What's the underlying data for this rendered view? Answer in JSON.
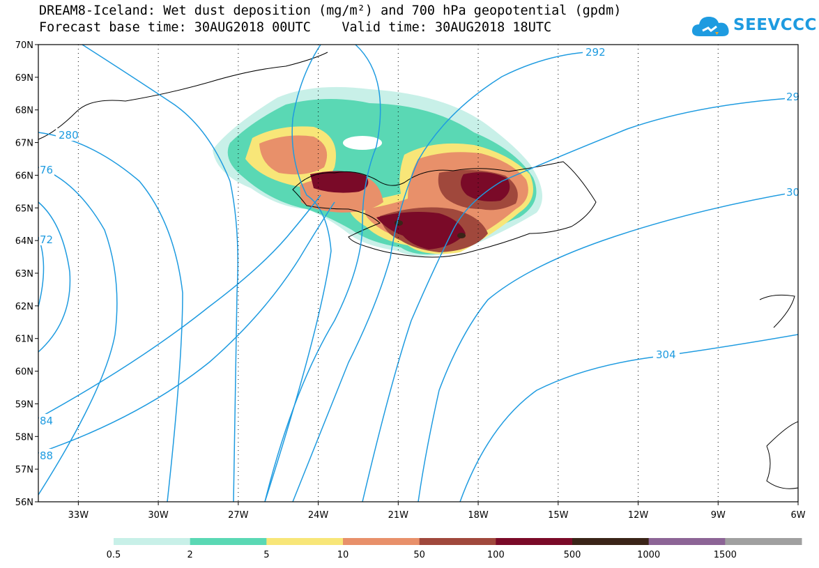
{
  "title": {
    "line1": "DREAM8-Iceland: Wet dust deposition (mg/m²) and 700 hPa geopotential (gpdm)",
    "line2": "Forecast base time: 30AUG2018 00UTC    Valid time: 30AUG2018 18UTC"
  },
  "logo": {
    "text": "SEEVCCC",
    "icon": "cloud-icon",
    "color": "#1e9be0"
  },
  "map": {
    "lat_labels": [
      "70N",
      "69N",
      "68N",
      "67N",
      "66N",
      "65N",
      "64N",
      "63N",
      "62N",
      "61N",
      "60N",
      "59N",
      "58N",
      "57N",
      "56N"
    ],
    "lon_labels": [
      "33W",
      "30W",
      "27W",
      "24W",
      "21W",
      "18W",
      "15W",
      "12W",
      "9W",
      "6W"
    ],
    "lon_range": [
      -34.5,
      -6
    ],
    "lat_range": [
      56,
      70
    ],
    "contour_color": "#1e9be0",
    "contour_labels": [
      "292",
      "29",
      "280",
      "76",
      "30",
      "72",
      "304",
      "84",
      "88"
    ]
  },
  "colorbar": {
    "labels": [
      "0.5",
      "2",
      "5",
      "10",
      "50",
      "100",
      "500",
      "1000",
      "1500"
    ],
    "colors": [
      "#c8f0e8",
      "#5ad8b4",
      "#f8e678",
      "#e8906a",
      "#a0483c",
      "#7a0a28",
      "#3a2418",
      "#8c6496",
      "#a0a0a0"
    ]
  }
}
